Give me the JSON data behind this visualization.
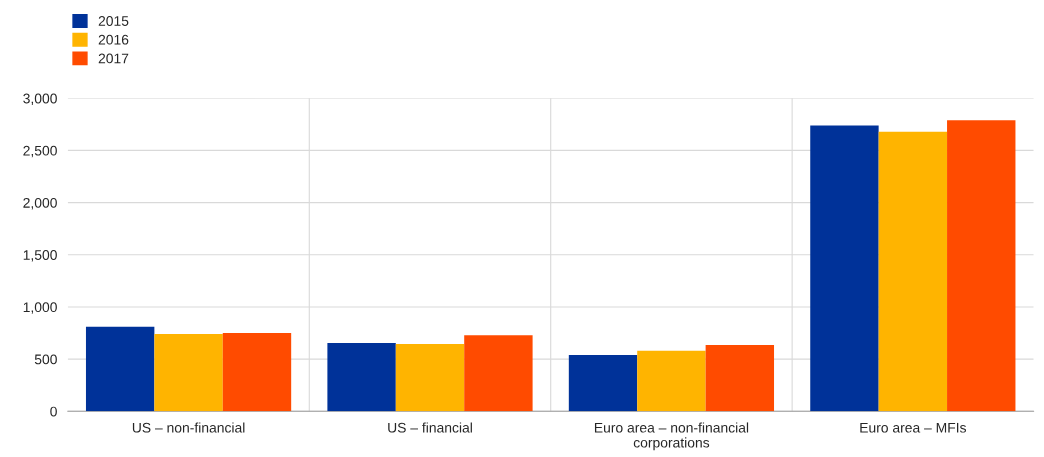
{
  "chart_data": {
    "type": "bar",
    "categories": [
      "US – non-financial",
      "US – financial",
      "Euro area – non-financial\ncorporations",
      "Euro area – MFIs"
    ],
    "series": [
      {
        "name": "2015",
        "color": "#003299",
        "values": [
          810,
          655,
          540,
          2740
        ]
      },
      {
        "name": "2016",
        "color": "#ffb400",
        "values": [
          740,
          645,
          580,
          2680
        ]
      },
      {
        "name": "2017",
        "color": "#ff4b00",
        "values": [
          750,
          730,
          635,
          2790
        ]
      }
    ],
    "ylim": [
      0,
      3000
    ],
    "yticks": [
      {
        "value": 0,
        "label": "0"
      },
      {
        "value": 500,
        "label": "500"
      },
      {
        "value": 1000,
        "label": "1,000"
      },
      {
        "value": 1500,
        "label": "1,500"
      },
      {
        "value": 2000,
        "label": "2,000"
      },
      {
        "value": 2500,
        "label": "2,500"
      },
      {
        "value": 3000,
        "label": "3,000"
      }
    ],
    "grid": true,
    "legend": "top left"
  }
}
